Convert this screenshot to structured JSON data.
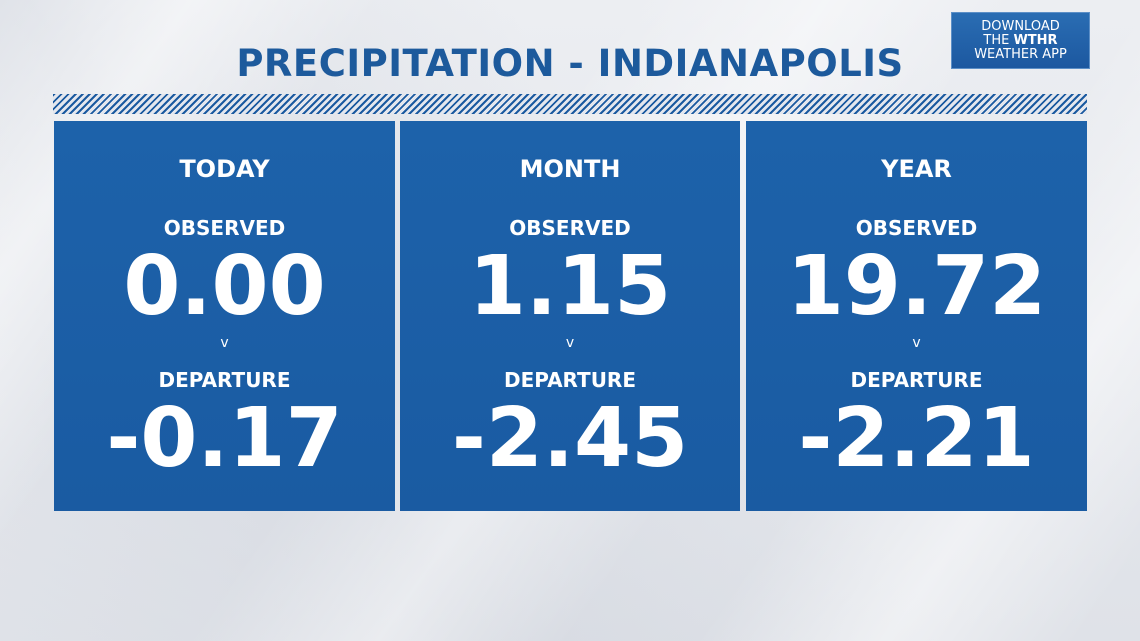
{
  "title": "PRECIPITATION - INDIANAPOLIS",
  "app_badge": {
    "line1": "DOWNLOAD",
    "line2_prefix": "THE ",
    "line2_brand": "WTHR",
    "line3": "WEATHER APP"
  },
  "colors": {
    "title": "#1d5a9c",
    "panel": "#1a5da4",
    "text_on_panel": "#ffffff"
  },
  "panels": [
    {
      "heading": "TODAY",
      "observed_label": "OBSERVED",
      "observed_value": "0.00",
      "divider": "v",
      "departure_label": "DEPARTURE",
      "departure_value": "-0.17"
    },
    {
      "heading": "MONTH",
      "observed_label": "OBSERVED",
      "observed_value": "1.15",
      "divider": "v",
      "departure_label": "DEPARTURE",
      "departure_value": "-2.45"
    },
    {
      "heading": "YEAR",
      "observed_label": "OBSERVED",
      "observed_value": "19.72",
      "divider": "v",
      "departure_label": "DEPARTURE",
      "departure_value": "-2.21"
    }
  ]
}
